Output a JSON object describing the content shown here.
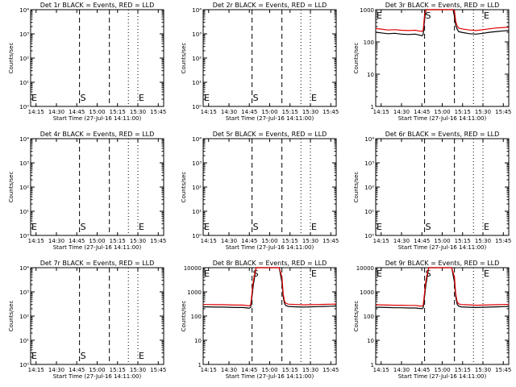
{
  "figure": {
    "background": "#ffffff",
    "axis_color": "#000000"
  },
  "chart_data": [
    {
      "type": "line",
      "title": "Det 1r BLACK = Events, RED = LLD",
      "xlabel": "Start Time (27-Jul-16 14:11:00)",
      "ylabel": "Counts/sec",
      "xlim": [
        "14:11",
        "15:49"
      ],
      "x_ticks": [
        "14:15",
        "14:30",
        "14:45",
        "15:00",
        "15:15",
        "15:30",
        "15:45"
      ],
      "ylim": [
        1,
        10000
      ],
      "y_scale": "log",
      "y_ticks": [
        "10⁰",
        "10¹",
        "10²",
        "10³",
        "10⁴"
      ],
      "markers": [
        {
          "time": "14:11",
          "label": "E",
          "style": "dotted"
        },
        {
          "time": "14:47",
          "label": "S",
          "style": "dashed"
        },
        {
          "time": "15:09",
          "label": "",
          "style": "dashed"
        },
        {
          "time": "15:23",
          "label": "",
          "style": "dotted"
        },
        {
          "time": "15:30",
          "label": "E",
          "style": "dotted"
        }
      ],
      "series": []
    },
    {
      "type": "line",
      "title": "Det 2r BLACK = Events, RED = LLD",
      "xlabel": "Start Time (27-Jul-16 14:11:00)",
      "ylabel": "Counts/sec",
      "xlim": [
        "14:11",
        "15:49"
      ],
      "x_ticks": [
        "14:15",
        "14:30",
        "14:45",
        "15:00",
        "15:15",
        "15:30",
        "15:45"
      ],
      "ylim": [
        1,
        10000
      ],
      "y_scale": "log",
      "y_ticks": [
        "10⁰",
        "10¹",
        "10²",
        "10³",
        "10⁴"
      ],
      "markers": [
        {
          "time": "14:11",
          "label": "E",
          "style": "dotted"
        },
        {
          "time": "14:47",
          "label": "S",
          "style": "dashed"
        },
        {
          "time": "15:09",
          "label": "",
          "style": "dashed"
        },
        {
          "time": "15:23",
          "label": "",
          "style": "dotted"
        },
        {
          "time": "15:30",
          "label": "E",
          "style": "dotted"
        }
      ],
      "series": []
    },
    {
      "type": "line",
      "title": "Det 3r BLACK = Events, RED = LLD",
      "xlabel": "Start Time (27-Jul-16 14:11:00)",
      "ylabel": "Counts/sec",
      "xlim": [
        "14:11",
        "15:49"
      ],
      "x_ticks": [
        "14:15",
        "14:30",
        "14:45",
        "15:00",
        "15:15",
        "15:30",
        "15:45"
      ],
      "ylim": [
        1,
        1000
      ],
      "y_scale": "log",
      "y_ticks": [
        "1",
        "10",
        "100",
        "1000"
      ],
      "markers": [
        {
          "time": "14:11",
          "label": "E",
          "style": "dotted"
        },
        {
          "time": "14:47",
          "label": "S",
          "style": "dashed"
        },
        {
          "time": "15:09",
          "label": "",
          "style": "dashed"
        },
        {
          "time": "15:23",
          "label": "",
          "style": "dotted"
        },
        {
          "time": "15:30",
          "label": "E",
          "style": "dotted"
        }
      ],
      "series": [
        {
          "color": "#000000",
          "x": [
            "14:11",
            "14:15",
            "14:20",
            "14:25",
            "14:30",
            "14:35",
            "14:40",
            "14:44",
            "14:45",
            "14:46",
            "14:47",
            "14:48",
            "14:50",
            "14:55",
            "15:00",
            "15:05",
            "15:08",
            "15:09",
            "15:10",
            "15:11",
            "15:12",
            "15:14",
            "15:20",
            "15:25",
            "15:30",
            "15:35",
            "15:40",
            "15:45",
            "15:49"
          ],
          "y": [
            200,
            190,
            180,
            185,
            175,
            170,
            175,
            160,
            155,
            170,
            500,
            1000,
            1000,
            1000,
            1000,
            1000,
            1000,
            600,
            320,
            250,
            210,
            200,
            180,
            175,
            185,
            200,
            210,
            220,
            225
          ]
        },
        {
          "color": "#e00000",
          "x": [
            "14:11",
            "14:15",
            "14:20",
            "14:25",
            "14:30",
            "14:35",
            "14:40",
            "14:44",
            "14:45",
            "14:46",
            "14:47",
            "14:48",
            "14:50",
            "14:55",
            "15:00",
            "15:05",
            "15:08",
            "15:09",
            "15:10",
            "15:11",
            "15:12",
            "15:14",
            "15:20",
            "15:25",
            "15:30",
            "15:35",
            "15:40",
            "15:45",
            "15:49"
          ],
          "y": [
            260,
            250,
            235,
            240,
            230,
            225,
            230,
            215,
            210,
            230,
            700,
            1000,
            1000,
            1000,
            1000,
            1000,
            1000,
            900,
            420,
            320,
            270,
            255,
            235,
            225,
            240,
            255,
            270,
            280,
            285
          ]
        }
      ]
    },
    {
      "type": "line",
      "title": "Det 4r BLACK = Events, RED = LLD",
      "xlabel": "Start Time (27-Jul-16 14:11:00)",
      "ylabel": "Counts/sec",
      "xlim": [
        "14:11",
        "15:49"
      ],
      "x_ticks": [
        "14:15",
        "14:30",
        "14:45",
        "15:00",
        "15:15",
        "15:30",
        "15:45"
      ],
      "ylim": [
        1,
        10000
      ],
      "y_scale": "log",
      "y_ticks": [
        "10⁰",
        "10¹",
        "10²",
        "10³",
        "10⁴"
      ],
      "markers": [
        {
          "time": "14:11",
          "label": "E",
          "style": "dotted"
        },
        {
          "time": "14:47",
          "label": "S",
          "style": "dashed"
        },
        {
          "time": "15:09",
          "label": "",
          "style": "dashed"
        },
        {
          "time": "15:23",
          "label": "",
          "style": "dotted"
        },
        {
          "time": "15:30",
          "label": "E",
          "style": "dotted"
        }
      ],
      "series": []
    },
    {
      "type": "line",
      "title": "Det 5r BLACK = Events, RED = LLD",
      "xlabel": "Start Time (27-Jul-16 14:11:00)",
      "ylabel": "Counts/sec",
      "xlim": [
        "14:11",
        "15:49"
      ],
      "x_ticks": [
        "14:15",
        "14:30",
        "14:45",
        "15:00",
        "15:15",
        "15:30",
        "15:45"
      ],
      "ylim": [
        1,
        10000
      ],
      "y_scale": "log",
      "y_ticks": [
        "10⁰",
        "10¹",
        "10²",
        "10³",
        "10⁴"
      ],
      "markers": [
        {
          "time": "14:11",
          "label": "E",
          "style": "dotted"
        },
        {
          "time": "14:47",
          "label": "S",
          "style": "dashed"
        },
        {
          "time": "15:09",
          "label": "",
          "style": "dashed"
        },
        {
          "time": "15:23",
          "label": "",
          "style": "dotted"
        },
        {
          "time": "15:30",
          "label": "E",
          "style": "dotted"
        }
      ],
      "series": []
    },
    {
      "type": "line",
      "title": "Det 6r BLACK = Events, RED = LLD",
      "xlabel": "Start Time (27-Jul-16 14:11:00)",
      "ylabel": "Counts/sec",
      "xlim": [
        "14:11",
        "15:49"
      ],
      "x_ticks": [
        "14:15",
        "14:30",
        "14:45",
        "15:00",
        "15:15",
        "15:30",
        "15:45"
      ],
      "ylim": [
        1,
        10000
      ],
      "y_scale": "log",
      "y_ticks": [
        "10⁰",
        "10¹",
        "10²",
        "10³",
        "10⁴"
      ],
      "markers": [
        {
          "time": "14:11",
          "label": "E",
          "style": "dotted"
        },
        {
          "time": "14:47",
          "label": "S",
          "style": "dashed"
        },
        {
          "time": "15:09",
          "label": "",
          "style": "dashed"
        },
        {
          "time": "15:23",
          "label": "",
          "style": "dotted"
        },
        {
          "time": "15:30",
          "label": "E",
          "style": "dotted"
        }
      ],
      "series": []
    },
    {
      "type": "line",
      "title": "Det 7r BLACK = Events, RED = LLD",
      "xlabel": "Start Time (27-Jul-16 14:11:00)",
      "ylabel": "Counts/sec",
      "xlim": [
        "14:11",
        "15:49"
      ],
      "x_ticks": [
        "14:15",
        "14:30",
        "14:45",
        "15:00",
        "15:15",
        "15:30",
        "15:45"
      ],
      "ylim": [
        1,
        10000
      ],
      "y_scale": "log",
      "y_ticks": [
        "10⁰",
        "10¹",
        "10²",
        "10³",
        "10⁴"
      ],
      "markers": [
        {
          "time": "14:11",
          "label": "E",
          "style": "dotted"
        },
        {
          "time": "14:47",
          "label": "S",
          "style": "dashed"
        },
        {
          "time": "15:09",
          "label": "",
          "style": "dashed"
        },
        {
          "time": "15:23",
          "label": "",
          "style": "dotted"
        },
        {
          "time": "15:30",
          "label": "E",
          "style": "dotted"
        }
      ],
      "series": []
    },
    {
      "type": "line",
      "title": "Det 8r BLACK = Events, RED = LLD",
      "xlabel": "Start Time (27-Jul-16 14:11:00)",
      "ylabel": "Counts/sec",
      "xlim": [
        "14:11",
        "15:49"
      ],
      "x_ticks": [
        "14:15",
        "14:30",
        "14:45",
        "15:00",
        "15:15",
        "15:30",
        "15:45"
      ],
      "ylim": [
        1,
        10000
      ],
      "y_scale": "log",
      "y_ticks": [
        "1",
        "10",
        "100",
        "1000",
        "10000"
      ],
      "markers": [
        {
          "time": "14:11",
          "label": "E",
          "style": "dotted"
        },
        {
          "time": "14:47",
          "label": "S",
          "style": "dashed"
        },
        {
          "time": "15:09",
          "label": "",
          "style": "dashed"
        },
        {
          "time": "15:23",
          "label": "",
          "style": "dotted"
        },
        {
          "time": "15:30",
          "label": "E",
          "style": "dotted"
        }
      ],
      "series": [
        {
          "color": "#000000",
          "x": [
            "14:11",
            "14:15",
            "14:20",
            "14:25",
            "14:30",
            "14:35",
            "14:40",
            "14:44",
            "14:45",
            "14:46",
            "14:48",
            "14:50",
            "14:55",
            "15:00",
            "15:05",
            "15:07",
            "15:09",
            "15:10",
            "15:11",
            "15:12",
            "15:14",
            "15:20",
            "15:25",
            "15:30",
            "15:35",
            "15:40",
            "15:45",
            "15:49"
          ],
          "y": [
            240,
            240,
            235,
            235,
            230,
            225,
            225,
            215,
            210,
            230,
            2000,
            10000,
            10000,
            10000,
            10000,
            10000,
            2500,
            600,
            320,
            270,
            250,
            240,
            235,
            240,
            245,
            250,
            255,
            260
          ]
        },
        {
          "color": "#e00000",
          "x": [
            "14:11",
            "14:15",
            "14:20",
            "14:25",
            "14:30",
            "14:35",
            "14:40",
            "14:44",
            "14:45",
            "14:46",
            "14:48",
            "14:50",
            "14:55",
            "15:00",
            "15:05",
            "15:07",
            "15:09",
            "15:10",
            "15:11",
            "15:12",
            "15:14",
            "15:20",
            "15:25",
            "15:30",
            "15:35",
            "15:40",
            "15:45",
            "15:49"
          ],
          "y": [
            300,
            300,
            295,
            295,
            290,
            285,
            285,
            270,
            265,
            290,
            3000,
            10000,
            10000,
            10000,
            10000,
            10000,
            4000,
            800,
            400,
            330,
            310,
            300,
            290,
            295,
            300,
            305,
            310,
            315
          ]
        }
      ]
    },
    {
      "type": "line",
      "title": "Det 9r BLACK = Events, RED = LLD",
      "xlabel": "Start Time (27-Jul-16 14:11:00)",
      "ylabel": "Counts/sec",
      "xlim": [
        "14:11",
        "15:49"
      ],
      "x_ticks": [
        "14:15",
        "14:30",
        "14:45",
        "15:00",
        "15:15",
        "15:30",
        "15:45"
      ],
      "ylim": [
        1,
        10000
      ],
      "y_scale": "log",
      "y_ticks": [
        "1",
        "10",
        "100",
        "1000",
        "10000"
      ],
      "markers": [
        {
          "time": "14:11",
          "label": "E",
          "style": "dotted"
        },
        {
          "time": "14:47",
          "label": "S",
          "style": "dashed"
        },
        {
          "time": "15:09",
          "label": "",
          "style": "dashed"
        },
        {
          "time": "15:23",
          "label": "",
          "style": "dotted"
        },
        {
          "time": "15:30",
          "label": "E",
          "style": "dotted"
        }
      ],
      "series": [
        {
          "color": "#000000",
          "x": [
            "14:11",
            "14:15",
            "14:20",
            "14:25",
            "14:30",
            "14:35",
            "14:40",
            "14:44",
            "14:45",
            "14:46",
            "14:48",
            "14:50",
            "14:55",
            "15:00",
            "15:05",
            "15:07",
            "15:09",
            "15:10",
            "15:11",
            "15:12",
            "15:14",
            "15:20",
            "15:25",
            "15:30",
            "15:35",
            "15:40",
            "15:45",
            "15:49"
          ],
          "y": [
            230,
            230,
            225,
            220,
            220,
            215,
            215,
            205,
            200,
            220,
            2000,
            10000,
            10000,
            10000,
            10000,
            10000,
            2500,
            600,
            310,
            260,
            240,
            230,
            225,
            230,
            235,
            240,
            245,
            250
          ]
        },
        {
          "color": "#e00000",
          "x": [
            "14:11",
            "14:15",
            "14:20",
            "14:25",
            "14:30",
            "14:35",
            "14:40",
            "14:44",
            "14:45",
            "14:46",
            "14:48",
            "14:50",
            "14:55",
            "15:00",
            "15:05",
            "15:07",
            "15:09",
            "15:10",
            "15:11",
            "15:12",
            "15:14",
            "15:20",
            "15:25",
            "15:30",
            "15:35",
            "15:40",
            "15:45",
            "15:49"
          ],
          "y": [
            290,
            290,
            285,
            280,
            280,
            275,
            275,
            260,
            255,
            280,
            3000,
            10000,
            10000,
            10000,
            10000,
            10000,
            4000,
            800,
            390,
            320,
            300,
            290,
            280,
            285,
            290,
            295,
            300,
            305
          ]
        }
      ]
    }
  ]
}
